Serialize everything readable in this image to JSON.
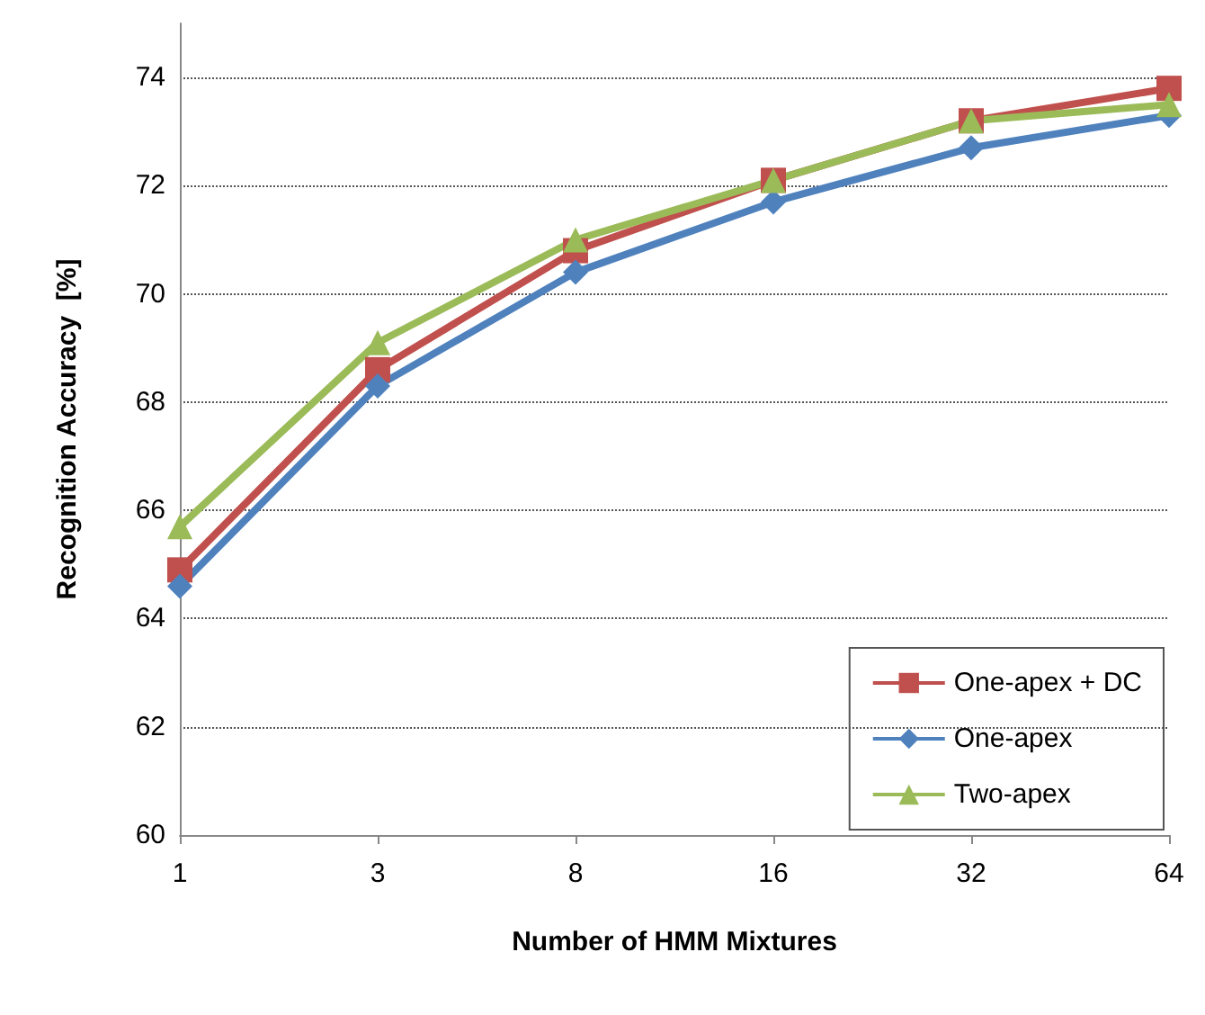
{
  "chart_data": {
    "type": "line",
    "xlabel": "Number of HMM Mixtures",
    "ylabel": "Recognition Accuracy  [%]",
    "categories": [
      "1",
      "3",
      "8",
      "16",
      "32",
      "64"
    ],
    "ylim": [
      60,
      75
    ],
    "yticks": [
      60,
      62,
      64,
      66,
      68,
      70,
      72,
      74
    ],
    "grid": "y",
    "legend": "bottom right",
    "series": [
      {
        "name": "One-apex + DC",
        "color": "#c0504d",
        "marker": "square",
        "values": [
          64.9,
          68.6,
          70.8,
          72.1,
          73.2,
          73.8
        ]
      },
      {
        "name": "One-apex",
        "color": "#4f81bd",
        "marker": "diamond",
        "values": [
          64.6,
          68.3,
          70.4,
          71.7,
          72.7,
          73.3
        ]
      },
      {
        "name": "Two-apex",
        "color": "#9bbb59",
        "marker": "triangle",
        "values": [
          65.7,
          69.1,
          71.0,
          72.1,
          73.2,
          73.5
        ]
      }
    ]
  }
}
